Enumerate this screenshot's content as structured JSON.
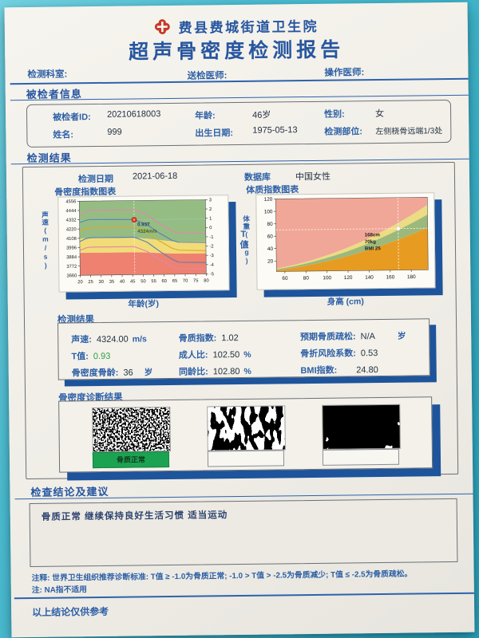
{
  "header": {
    "hospital": "费县费城街道卫生院",
    "title": "超声骨密度检测报告",
    "dept_label": "检测科室:",
    "referrer_label": "送检医师:",
    "operator_label": "操作医师:"
  },
  "patient": {
    "section_title": "被检者信息",
    "id_label": "被检者ID:",
    "id_value": "20210618003",
    "age_label": "年龄:",
    "age_value": "46岁",
    "gender_label": "性别:",
    "gender_value": "女",
    "name_label": "姓名:",
    "name_value": "999",
    "birth_label": "出生日期:",
    "birth_value": "1975-05-13",
    "site_label": "检测部位:",
    "site_value": "左侧桡骨远端1/3处"
  },
  "results": {
    "section_title": "检测结果",
    "date_label": "检测日期",
    "date_value": "2021-06-18",
    "db_label": "数据库",
    "db_value": "中国女性",
    "values_title": "检测结果",
    "t_value_style": "color:#2f9e44;font-size:11px;",
    "items": [
      {
        "label": "声速:",
        "value": "4324.00",
        "unit": "m/s"
      },
      {
        "label": "骨质指数:",
        "value": "1.02",
        "unit": ""
      },
      {
        "label": "预期骨质疏松:",
        "value": "N/A",
        "unit": "岁"
      },
      {
        "label": "T值:",
        "value": "0.93",
        "unit": ""
      },
      {
        "label": "成人比:",
        "value": "102.50",
        "unit": "%"
      },
      {
        "label": "骨折风险系数:",
        "value": "0.53",
        "unit": ""
      },
      {
        "label": "骨密度骨龄:",
        "value": "36",
        "unit": "岁"
      },
      {
        "label": "同龄比:",
        "value": "102.80",
        "unit": "%"
      },
      {
        "label": "BMI指数:",
        "value": "24.80",
        "unit": ""
      }
    ]
  },
  "diagnosis": {
    "section_title": "骨密度诊断结果",
    "labels": [
      "骨质正常",
      "",
      ""
    ],
    "label_styles": [
      "background:#1ba351;border:1px solid #128544;color:#113c20;",
      "",
      ""
    ]
  },
  "conclusion": {
    "section_title": "检查结论及建议",
    "text": "骨质正常  继续保持良好生活习惯  适当运动"
  },
  "footer": {
    "note1": "注释: 世界卫生组织推荐诊断标准: T值 ≥ -1.0为骨质正常; -1.0 > T值 > -2.5为骨质减少; T值 ≤ -2.5为骨质疏松。",
    "note2": "注: NA指不适用",
    "disclaimer": "以上结论仅供参考"
  },
  "chart_data": [
    {
      "type": "area",
      "title": "骨密度指数图表",
      "xlabel": "年龄(岁)",
      "ylabel_left": "声速(m/s)",
      "ylabel_right": "T值",
      "xlim_age": [
        20,
        80
      ],
      "ylim_speed": [
        3660,
        4556
      ],
      "x_ticks": [
        20,
        25,
        30,
        35,
        40,
        45,
        50,
        55,
        60,
        65,
        70,
        75,
        80
      ],
      "y_ticks_left": [
        4556,
        4444,
        4332,
        4220,
        4108,
        3996,
        3884,
        3772,
        3660
      ],
      "y_ticks_right": [
        3,
        2,
        1,
        0,
        -1,
        -2,
        -3,
        -4,
        -5
      ],
      "t_ref": {
        "t0_speed": 4220,
        "speed_per_t": 112
      },
      "zone_colors": {
        "normal": "#95bd83",
        "osteopenia": "#f1dc78",
        "osteoporosis": "#ee8170"
      },
      "bands": {
        "normal_lower": [
          [
            20,
            -1.02
          ],
          [
            46,
            -1.02
          ],
          [
            52,
            -1.12
          ],
          [
            58,
            -1.3
          ],
          [
            64,
            -1.45
          ],
          [
            67,
            -1.5
          ],
          [
            80,
            -1.5
          ]
        ],
        "osteopenia_lower": [
          [
            20,
            -2.58
          ],
          [
            46,
            -2.58
          ],
          [
            52,
            -2.62
          ],
          [
            58,
            -2.7
          ],
          [
            64,
            -2.76
          ],
          [
            67,
            -2.78
          ],
          [
            80,
            -2.78
          ]
        ]
      },
      "curves": [
        {
          "name": "plus-2sd",
          "color": "#e584ad",
          "points_t": [
            [
              20,
              1.45
            ],
            [
              23,
              1.85
            ],
            [
              25,
              2.0
            ],
            [
              46,
              2.0
            ],
            [
              52,
              1.45
            ],
            [
              58,
              0.5
            ],
            [
              64,
              -0.35
            ],
            [
              67,
              -0.55
            ],
            [
              80,
              -0.62
            ]
          ]
        },
        {
          "name": "plus-1sd",
          "color": "#5a7db8",
          "points_t": [
            [
              20,
              0.7
            ],
            [
              23,
              0.92
            ],
            [
              25,
              1.0
            ],
            [
              46,
              0.95
            ],
            [
              52,
              0.4
            ],
            [
              58,
              -0.55
            ],
            [
              64,
              -1.35
            ],
            [
              67,
              -1.55
            ],
            [
              80,
              -1.6
            ]
          ]
        },
        {
          "name": "mean",
          "color": "#dfa62c",
          "points_t": [
            [
              20,
              -0.35
            ],
            [
              23,
              0.0
            ],
            [
              25,
              0.1
            ],
            [
              46,
              0.1
            ],
            [
              52,
              -0.45
            ],
            [
              58,
              -1.4
            ],
            [
              64,
              -2.2
            ],
            [
              67,
              -2.4
            ],
            [
              80,
              -2.5
            ]
          ]
        },
        {
          "name": "minus-1sd",
          "color": "#5a7db8",
          "points_t": [
            [
              20,
              -1.35
            ],
            [
              23,
              -1.05
            ],
            [
              25,
              -0.95
            ],
            [
              46,
              -0.95
            ],
            [
              52,
              -1.5
            ],
            [
              58,
              -2.5
            ],
            [
              64,
              -3.4
            ],
            [
              67,
              -3.7
            ],
            [
              80,
              -3.78
            ]
          ]
        },
        {
          "name": "minus-2sd",
          "color": "#e584ad",
          "points_t": [
            [
              20,
              -2.3
            ],
            [
              23,
              -2.05
            ],
            [
              25,
              -1.97
            ],
            [
              46,
              -1.97
            ],
            [
              52,
              -2.5
            ],
            [
              58,
              -3.4
            ],
            [
              64,
              -4.2
            ],
            [
              67,
              -4.4
            ],
            [
              80,
              -4.45
            ]
          ]
        }
      ],
      "marker": {
        "age": 46,
        "t": 0.93,
        "speed": 4324,
        "t_label": "0.93T",
        "speed_label": "4324m/s"
      }
    },
    {
      "type": "area",
      "title": "体质指数图表",
      "xlabel": "身高 (cm)",
      "ylabel": "体重(kg)",
      "xlim_height": [
        52,
        196
      ],
      "ylim_weight": [
        3,
        120
      ],
      "x_ticks": [
        60,
        80,
        100,
        120,
        140,
        160,
        180
      ],
      "y_ticks": [
        20,
        40,
        60,
        80,
        100,
        120
      ],
      "bmi_boundaries": [
        18.5,
        24,
        28
      ],
      "zone_colors": {
        "underweight": "#e89b21",
        "normal": "#9cb97b",
        "overweight": "#ecdc83",
        "obese": "#f1a797"
      },
      "marker": {
        "height_cm": 168,
        "weight_kg": 70,
        "bmi": 25,
        "labels": [
          "168cm",
          "70kg",
          "BMI 25"
        ]
      }
    }
  ]
}
